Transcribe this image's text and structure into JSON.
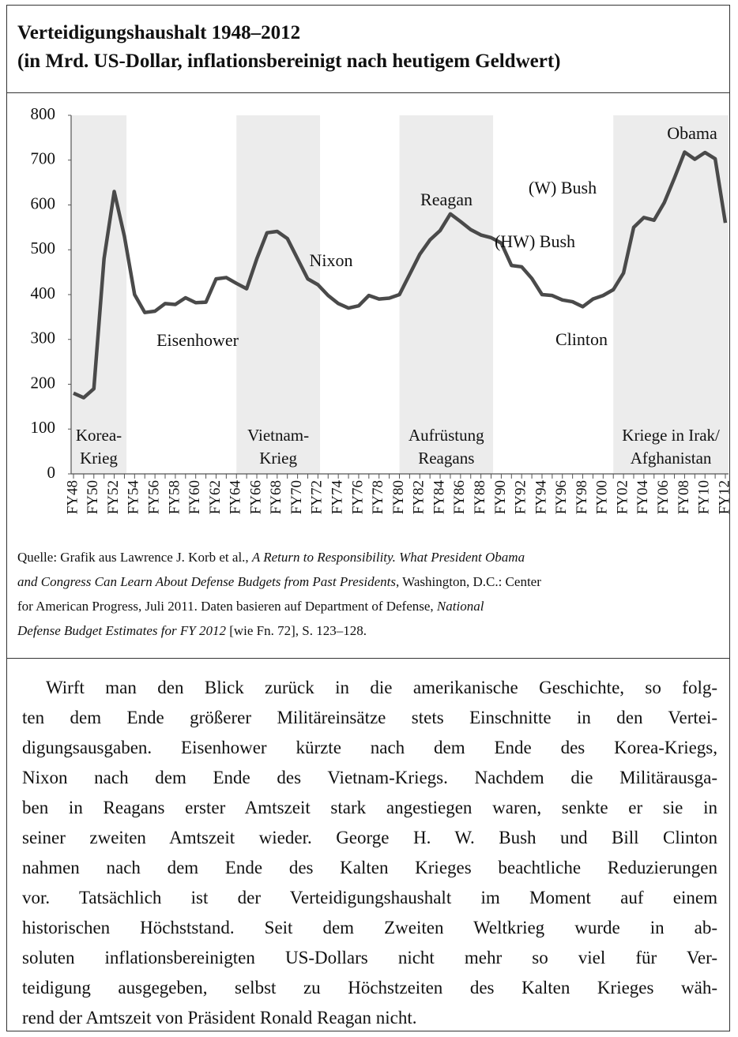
{
  "chart_data": {
    "type": "line",
    "title": [
      "Verteidigungshaushalt 1948–2012",
      "(in Mrd. US-Dollar, inflationsbereinigt nach heutigem Geldwert)"
    ],
    "categories": [
      "FY48",
      null,
      "FY50",
      null,
      "FY52",
      null,
      "FY54",
      null,
      "FY56",
      null,
      "FY58",
      null,
      "FY60",
      null,
      "FY62",
      null,
      "FY64",
      null,
      "FY66",
      null,
      "FY68",
      null,
      "FY70",
      null,
      "FY72",
      null,
      "FY74",
      null,
      "FY76",
      null,
      "FY78",
      null,
      "FY80",
      null,
      "FY82",
      null,
      "FY84",
      null,
      "FY86",
      null,
      "FY88",
      null,
      "FY90",
      null,
      "FY92",
      null,
      "FY94",
      null,
      "FY96",
      null,
      "FY98",
      null,
      "FY00",
      null,
      "FY02",
      null,
      "FY04",
      null,
      "FY06",
      null,
      "FY08",
      null,
      "FY10",
      null,
      "FY12"
    ],
    "series": [
      {
        "name": "Verteidigungshaushalt",
        "color": "#4a4a4a",
        "values": [
          180,
          170,
          190,
          480,
          630,
          530,
          400,
          360,
          363,
          380,
          378,
          393,
          382,
          383,
          435,
          438,
          425,
          413,
          480,
          538,
          541,
          525,
          480,
          435,
          422,
          398,
          380,
          370,
          375,
          398,
          390,
          392,
          400,
          445,
          490,
          522,
          543,
          580,
          563,
          545,
          533,
          527,
          515,
          465,
          462,
          436,
          400,
          398,
          388,
          384,
          373,
          390,
          398,
          411,
          448,
          550,
          572,
          566,
          605,
          660,
          718,
          702,
          717,
          703,
          560
        ]
      }
    ],
    "ylim": [
      0,
      800
    ],
    "yticks": [
      0,
      100,
      200,
      300,
      400,
      500,
      600,
      700,
      800
    ],
    "grid": false,
    "bands": [
      {
        "from": "FY48",
        "to": "FY53",
        "label": [
          "Korea-",
          "Krieg"
        ]
      },
      {
        "from": "FY64",
        "to": "FY72",
        "label": [
          "Vietnam-",
          "Krieg"
        ]
      },
      {
        "from": "FY80",
        "to": "FY89",
        "label": [
          "Aufrüstung",
          "Reagans"
        ]
      },
      {
        "from": "FY01",
        "to": "FY12",
        "label": [
          "Kriege in Irak/",
          "Afghanistan"
        ]
      }
    ],
    "annotations": [
      "Obama",
      "(W) Bush",
      "Reagan",
      "(HW) Bush",
      "Nixon",
      "Eisenhower",
      "Clinton"
    ]
  },
  "caption": [
    [
      {
        "text": "Quelle: Grafik aus Lawrence J. Korb et al., ",
        "italic": false
      },
      {
        "text": "A Return to Responsibility. What President Obama",
        "italic": true
      }
    ],
    [
      {
        "text": "and Congress Can Learn About Defense Budgets from Past Presidents",
        "italic": true
      },
      {
        "text": ", Washington, D.C.: Center",
        "italic": false
      }
    ],
    [
      {
        "text": "for American Progress, Juli 2011. Daten basieren auf Department of Defense, ",
        "italic": false
      },
      {
        "text": "National",
        "italic": true
      }
    ],
    [
      {
        "text": "Defense Budget Estimates for FY 2012",
        "italic": true
      },
      {
        "text": " [wie Fn. 72], S. 123–128.",
        "italic": false
      }
    ]
  ],
  "body": [
    "Wirft man den Blick zurück in die amerikanische Geschichte, so folg-",
    "ten dem Ende größerer Militäreinsätze stets Einschnitte in den Vertei-",
    "digungsausgaben. Eisenhower kürzte nach dem Ende des Korea-Kriegs,",
    "Nixon nach dem Ende des Vietnam-Kriegs. Nachdem die Militärausga-",
    "ben in Reagans erster Amtszeit stark angestiegen waren, senkte er sie in",
    "seiner zweiten Amtszeit wieder. George H. W. Bush und Bill Clinton",
    "nahmen nach dem Ende des Kalten Krieges beachtliche Reduzierungen",
    "vor. Tatsächlich ist der Verteidigungshaushalt im Moment auf einem",
    "historischen Höchststand. Seit dem Zweiten Weltkrieg wurde in ab-",
    "soluten inflationsbereinigten US-Dollars nicht mehr so viel für Ver-",
    "teidigung ausgegeben, selbst zu Höchstzeiten des Kalten Krieges wäh-",
    "rend der Amtszeit von Präsident Ronald Reagan nicht."
  ]
}
